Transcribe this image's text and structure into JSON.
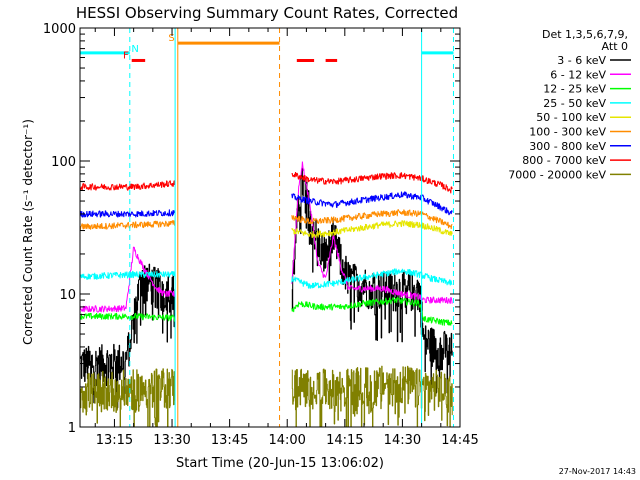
{
  "chart_data": {
    "type": "line",
    "title": "HESSI Observing Summary Count Rates, Corrected",
    "xlabel": "Start Time (20-Jun-15 13:06:02)",
    "ylabel": "Corrected Count Rate (s⁻¹ detector⁻¹)",
    "yscale": "log",
    "ylim": [
      1,
      1000
    ],
    "xlim_minutes": [
      6.03,
      105.0
    ],
    "x_ticks": [
      {
        "m": 15,
        "label": "13:15"
      },
      {
        "m": 30,
        "label": "13:30"
      },
      {
        "m": 45,
        "label": "13:45"
      },
      {
        "m": 60,
        "label": "14:00"
      },
      {
        "m": 75,
        "label": "14:15"
      },
      {
        "m": 90,
        "label": "14:30"
      },
      {
        "m": 105,
        "label": "14:45"
      }
    ],
    "y_ticks": [
      {
        "v": 1,
        "label": "1"
      },
      {
        "v": 10,
        "label": "10"
      },
      {
        "v": 100,
        "label": "100"
      },
      {
        "v": 1000,
        "label": "1000"
      }
    ],
    "legend": {
      "placement": "right",
      "header": [
        "Det 1,3,5,6,7,9,",
        "Att 0"
      ],
      "entries": [
        {
          "label": "3 - 6 keV",
          "color": "#000000"
        },
        {
          "label": "6 - 12 keV",
          "color": "#ff00ff"
        },
        {
          "label": "12 - 25 keV",
          "color": "#00ff00"
        },
        {
          "label": "25 - 50 keV",
          "color": "#00ffff"
        },
        {
          "label": "50 - 100 keV",
          "color": "#e6e600"
        },
        {
          "label": "100 - 300 keV",
          "color": "#ff8c00"
        },
        {
          "label": "300 - 800 keV",
          "color": "#0000ff"
        },
        {
          "label": "800 - 7000 keV",
          "color": "#ff0000"
        },
        {
          "label": "7000 - 20000 keV",
          "color": "#808000"
        }
      ]
    },
    "data_intervals": [
      [
        6.03,
        30.8
      ],
      [
        61.2,
        105
      ]
    ],
    "vertical_lines": [
      {
        "m": 31.5,
        "color": "#ff8c00",
        "style": "solid"
      },
      {
        "m": 58.0,
        "color": "#ff8c00",
        "style": "dashed"
      },
      {
        "m": 30.8,
        "color": "#00ffff",
        "style": "solid"
      },
      {
        "m": 19.0,
        "color": "#00ffff",
        "style": "dashed"
      },
      {
        "m": 95.0,
        "color": "#00ffff",
        "style": "solid"
      },
      {
        "m": 103.3,
        "color": "#00ffff",
        "style": "dashed"
      }
    ],
    "flag_bars": [
      {
        "label": "N",
        "color": "#00ffff",
        "y": 650,
        "segments": [
          [
            6.03,
            19.0
          ],
          [
            95.0,
            103.3
          ]
        ]
      },
      {
        "label": "S",
        "color": "#ff8c00",
        "y": 770,
        "segments": [
          [
            31.5,
            58.0
          ]
        ]
      },
      {
        "label": "F",
        "color": "#ff0000",
        "y": 570,
        "segments": [
          [
            19.5,
            23.0
          ],
          [
            62.5,
            67.0
          ],
          [
            70.0,
            73.0
          ]
        ]
      }
    ],
    "series": [
      {
        "name": "3 - 6 keV",
        "color": "#000000",
        "points": [
          [
            6.03,
            3.0
          ],
          [
            18.0,
            3.2
          ],
          [
            22.0,
            14.0
          ],
          [
            25.0,
            12.0
          ],
          [
            28.0,
            11.0
          ],
          [
            30.8,
            11.0
          ],
          [
            61.2,
            11.0
          ],
          [
            63.0,
            55.0
          ],
          [
            64.0,
            70.0
          ],
          [
            66.0,
            40.0
          ],
          [
            68.0,
            25.0
          ],
          [
            70.0,
            20.0
          ],
          [
            72.0,
            28.0
          ],
          [
            74.0,
            18.0
          ],
          [
            76.0,
            13.0
          ],
          [
            80.0,
            12.0
          ],
          [
            85.0,
            11.0
          ],
          [
            90.0,
            11.0
          ],
          [
            94.5,
            11.0
          ],
          [
            95.5,
            4.5
          ],
          [
            100.0,
            4.0
          ],
          [
            103.0,
            3.8
          ]
        ]
      },
      {
        "name": "6 - 12 keV",
        "color": "#ff00ff",
        "points": [
          [
            6.03,
            7.7
          ],
          [
            18.0,
            7.8
          ],
          [
            20.0,
            22.0
          ],
          [
            23.0,
            15.0
          ],
          [
            26.0,
            11.0
          ],
          [
            28.0,
            10.0
          ],
          [
            30.8,
            10.0
          ],
          [
            61.2,
            12.0
          ],
          [
            63.0,
            65.0
          ],
          [
            64.0,
            95.0
          ],
          [
            66.0,
            45.0
          ],
          [
            68.0,
            17.0
          ],
          [
            70.0,
            13.0
          ],
          [
            72.0,
            27.0
          ],
          [
            74.0,
            16.0
          ],
          [
            76.0,
            11.0
          ],
          [
            80.0,
            11.0
          ],
          [
            85.0,
            11.0
          ],
          [
            90.0,
            10.0
          ],
          [
            94.5,
            9.5
          ],
          [
            95.5,
            9.0
          ],
          [
            100.0,
            9.0
          ],
          [
            103.0,
            9.0
          ]
        ]
      },
      {
        "name": "12 - 25 keV",
        "color": "#00ff00",
        "points": [
          [
            6.03,
            6.8
          ],
          [
            20.0,
            6.8
          ],
          [
            30.8,
            6.6
          ],
          [
            61.2,
            7.5
          ],
          [
            63.0,
            8.5
          ],
          [
            68.0,
            8.0
          ],
          [
            74.0,
            8.0
          ],
          [
            80.0,
            8.5
          ],
          [
            88.0,
            9.0
          ],
          [
            94.5,
            8.5
          ],
          [
            95.5,
            6.5
          ],
          [
            103.0,
            6.0
          ]
        ]
      },
      {
        "name": "25 - 50 keV",
        "color": "#00ffff",
        "points": [
          [
            6.03,
            13.5
          ],
          [
            20.0,
            14.0
          ],
          [
            30.8,
            14.0
          ],
          [
            61.2,
            13.0
          ],
          [
            66.0,
            11.5
          ],
          [
            72.0,
            12.0
          ],
          [
            78.0,
            13.0
          ],
          [
            84.0,
            14.0
          ],
          [
            90.0,
            15.0
          ],
          [
            94.5,
            14.0
          ],
          [
            98.0,
            13.0
          ],
          [
            103.0,
            12.0
          ]
        ]
      },
      {
        "name": "50 - 100 keV",
        "color": "#e6e600",
        "points": [
          [
            61.2,
            30.0
          ],
          [
            66.0,
            28.0
          ],
          [
            72.0,
            29.0
          ],
          [
            78.0,
            31.0
          ],
          [
            84.0,
            33.0
          ],
          [
            90.0,
            34.0
          ],
          [
            95.0,
            33.0
          ],
          [
            100.0,
            30.0
          ],
          [
            103.0,
            28.0
          ]
        ]
      },
      {
        "name": "100 - 300 keV",
        "color": "#ff8c00",
        "points": [
          [
            6.03,
            32.0
          ],
          [
            20.0,
            33.0
          ],
          [
            30.8,
            34.0
          ],
          [
            61.2,
            38.0
          ],
          [
            66.0,
            35.0
          ],
          [
            72.0,
            36.0
          ],
          [
            78.0,
            38.0
          ],
          [
            84.0,
            40.0
          ],
          [
            90.0,
            41.0
          ],
          [
            95.0,
            40.0
          ],
          [
            100.0,
            35.0
          ],
          [
            103.0,
            32.0
          ]
        ]
      },
      {
        "name": "300 - 800 keV",
        "color": "#0000ff",
        "points": [
          [
            6.03,
            40.0
          ],
          [
            20.0,
            40.0
          ],
          [
            30.8,
            41.0
          ],
          [
            61.2,
            54.0
          ],
          [
            66.0,
            50.0
          ],
          [
            72.0,
            47.0
          ],
          [
            78.0,
            50.0
          ],
          [
            84.0,
            53.0
          ],
          [
            90.0,
            56.0
          ],
          [
            95.0,
            53.0
          ],
          [
            100.0,
            45.0
          ],
          [
            103.0,
            40.0
          ]
        ]
      },
      {
        "name": "800 - 7000 keV",
        "color": "#ff0000",
        "points": [
          [
            6.03,
            64.0
          ],
          [
            20.0,
            64.0
          ],
          [
            30.8,
            68.0
          ],
          [
            61.2,
            80.0
          ],
          [
            66.0,
            72.0
          ],
          [
            72.0,
            70.0
          ],
          [
            78.0,
            73.0
          ],
          [
            84.0,
            77.0
          ],
          [
            90.0,
            78.0
          ],
          [
            95.0,
            74.0
          ],
          [
            100.0,
            66.0
          ],
          [
            103.0,
            60.0
          ]
        ]
      },
      {
        "name": "7000 - 20000 keV",
        "color": "#808000",
        "points": [
          [
            6.03,
            1.9
          ],
          [
            20.0,
            2.0
          ],
          [
            30.8,
            2.1
          ],
          [
            61.2,
            2.1
          ],
          [
            72.0,
            2.0
          ],
          [
            80.0,
            2.1
          ],
          [
            90.0,
            2.2
          ],
          [
            95.0,
            2.0
          ],
          [
            103.0,
            2.0
          ]
        ]
      }
    ]
  },
  "footer": {
    "timestamp": "27-Nov-2017 14:43"
  }
}
